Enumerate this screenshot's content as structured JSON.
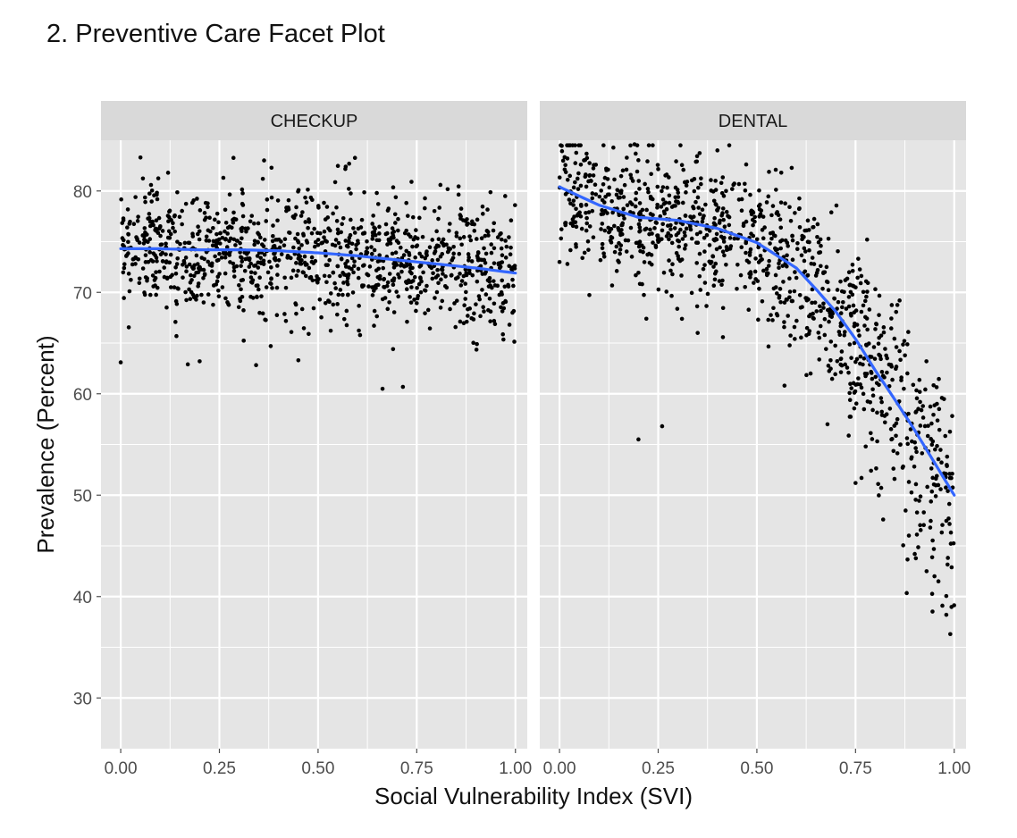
{
  "page": {
    "heading": "2. Preventive Care Facet Plot"
  },
  "colors": {
    "panel_bg": "#e5e5e5",
    "strip_bg": "#d9d9d9",
    "grid": "#ffffff",
    "point": "#000000",
    "smooth": "#3366ff",
    "tick": "#4d4d4d"
  },
  "chart_data": {
    "type": "scatter",
    "facet_by": "measure",
    "xlabel": "Social Vulnerability Index (SVI)",
    "ylabel": "Prevalence (Percent)",
    "xlim": [
      -0.05,
      1.03
    ],
    "ylim": [
      25,
      85
    ],
    "x_ticks": [
      0,
      0.25,
      0.5,
      0.75,
      1
    ],
    "x_tick_labels": [
      "0.00",
      "0.25",
      "0.50",
      "0.75",
      "1.00"
    ],
    "y_ticks": [
      30,
      40,
      50,
      60,
      70,
      80
    ],
    "y_tick_labels": [
      "30",
      "40",
      "50",
      "60",
      "70",
      "80"
    ],
    "approx_points_per_panel": 1100,
    "panels": [
      {
        "label": "CHECKUP",
        "smooth": {
          "x": [
            0,
            0.1,
            0.2,
            0.3,
            0.4,
            0.5,
            0.6,
            0.7,
            0.8,
            0.9,
            1.0
          ],
          "y": [
            74.3,
            74.3,
            74.2,
            74.2,
            74.1,
            73.9,
            73.6,
            73.2,
            72.8,
            72.4,
            71.9
          ]
        },
        "scatter_summary": {
          "x_range": [
            0,
            1
          ],
          "center_y": {
            "x": [
              0,
              0.5,
              1.0
            ],
            "y": [
              74.3,
              73.9,
              71.9
            ]
          },
          "spread_sd": {
            "x": [
              0,
              0.5,
              1.0
            ],
            "y": [
              2.8,
              3.0,
              3.2
            ]
          }
        },
        "notable_points": [
          {
            "x": 0.05,
            "y": 83.3
          },
          {
            "x": 0.12,
            "y": 81.8
          },
          {
            "x": 0.26,
            "y": 81.3
          },
          {
            "x": 0.36,
            "y": 81.2
          },
          {
            "x": 0.57,
            "y": 82.4
          },
          {
            "x": 0.81,
            "y": 80.6
          },
          {
            "x": 0.0,
            "y": 63.1
          },
          {
            "x": 0.17,
            "y": 62.9
          },
          {
            "x": 0.2,
            "y": 63.2
          },
          {
            "x": 0.45,
            "y": 63.3
          },
          {
            "x": 0.38,
            "y": 64.7
          },
          {
            "x": 0.69,
            "y": 64.4
          }
        ]
      },
      {
        "label": "DENTAL",
        "smooth": {
          "x": [
            0,
            0.1,
            0.2,
            0.3,
            0.4,
            0.5,
            0.6,
            0.65,
            0.7,
            0.75,
            0.8,
            0.85,
            0.9,
            0.95,
            1.0
          ],
          "y": [
            80.4,
            78.6,
            77.4,
            77.1,
            76.3,
            74.9,
            72.4,
            70.3,
            68.1,
            65.4,
            62.3,
            59.4,
            56.4,
            53.2,
            50.0
          ]
        },
        "scatter_summary": {
          "x_range": [
            0,
            1
          ],
          "center_y": {
            "x": [
              0,
              0.5,
              1.0
            ],
            "y": [
              80.4,
              74.9,
              50.0
            ]
          },
          "spread_sd": {
            "x": [
              0,
              0.5,
              1.0
            ],
            "y": [
              3.2,
              3.4,
              6.0
            ]
          }
        },
        "notable_points": [
          {
            "x": 0.2,
            "y": 55.5
          },
          {
            "x": 0.26,
            "y": 56.8
          },
          {
            "x": 0.57,
            "y": 60.8
          },
          {
            "x": 0.35,
            "y": 66.0
          },
          {
            "x": 0.22,
            "y": 67.4
          },
          {
            "x": 0.0,
            "y": 73.0
          },
          {
            "x": 0.02,
            "y": 72.8
          },
          {
            "x": 0.19,
            "y": 84.6
          },
          {
            "x": 0.4,
            "y": 84.0
          },
          {
            "x": 0.99,
            "y": 36.3
          },
          {
            "x": 0.98,
            "y": 38.2
          },
          {
            "x": 0.97,
            "y": 39.1
          },
          {
            "x": 0.95,
            "y": 42.0
          },
          {
            "x": 0.93,
            "y": 42.5
          },
          {
            "x": 0.96,
            "y": 41.5
          },
          {
            "x": 0.82,
            "y": 47.6
          },
          {
            "x": 0.75,
            "y": 51.2
          },
          {
            "x": 0.9,
            "y": 44.2
          }
        ]
      }
    ]
  }
}
